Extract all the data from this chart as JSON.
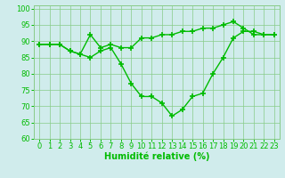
{
  "line1_x": [
    0,
    1,
    2,
    3,
    4,
    5,
    6,
    7,
    8,
    9,
    10,
    11,
    12,
    13,
    14,
    15,
    16,
    17,
    18,
    19,
    20,
    21,
    22,
    23
  ],
  "line1_y": [
    89,
    89,
    89,
    87,
    86,
    92,
    88,
    89,
    88,
    88,
    91,
    91,
    92,
    92,
    93,
    93,
    94,
    94,
    95,
    96,
    94,
    92,
    92,
    92
  ],
  "line2_x": [
    0,
    1,
    2,
    3,
    4,
    5,
    6,
    7,
    8,
    9,
    10,
    11,
    12,
    13,
    14,
    15,
    16,
    17,
    18,
    19,
    20,
    21,
    22,
    23
  ],
  "line2_y": [
    89,
    89,
    89,
    87,
    86,
    85,
    87,
    88,
    83,
    77,
    73,
    73,
    71,
    67,
    69,
    73,
    74,
    80,
    85,
    91,
    93,
    93,
    92,
    92
  ],
  "line_color": "#00bb00",
  "bg_color": "#d0ecec",
  "grid_color": "#88cc88",
  "xlabel": "Humidité relative (%)",
  "xlim": [
    -0.5,
    23.5
  ],
  "ylim": [
    60,
    101
  ],
  "yticks": [
    60,
    65,
    70,
    75,
    80,
    85,
    90,
    95,
    100
  ],
  "xticks": [
    0,
    1,
    2,
    3,
    4,
    5,
    6,
    7,
    8,
    9,
    10,
    11,
    12,
    13,
    14,
    15,
    16,
    17,
    18,
    19,
    20,
    21,
    22,
    23
  ],
  "marker": "+",
  "markersize": 4,
  "linewidth": 1.0,
  "xlabel_fontsize": 7,
  "tick_fontsize": 6
}
